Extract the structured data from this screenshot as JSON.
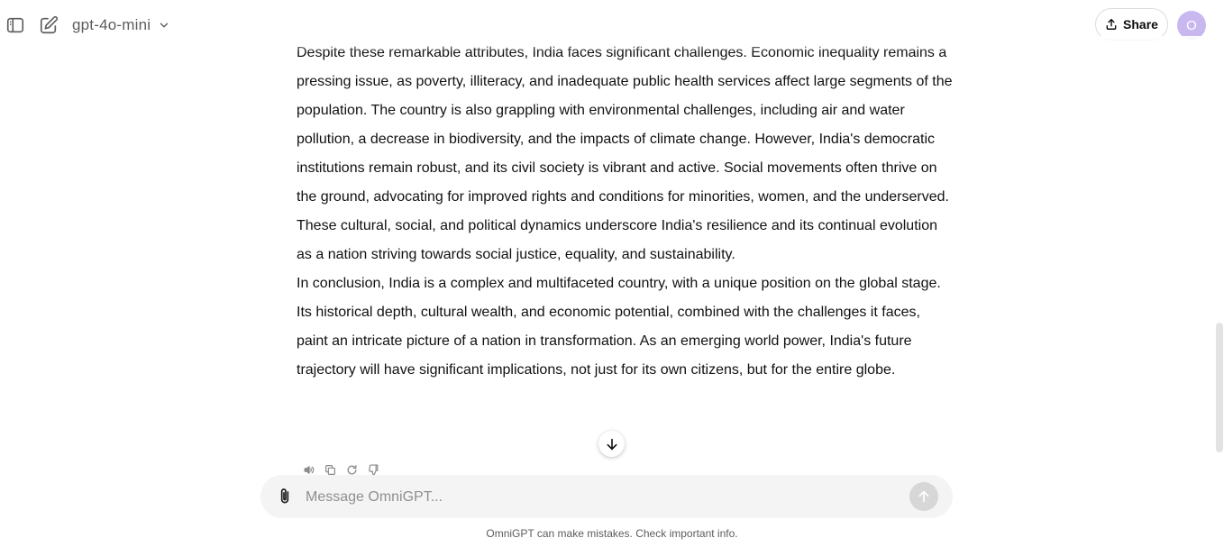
{
  "header": {
    "model_label": "gpt-4o-mini",
    "share_label": "Share",
    "avatar_initial": "O"
  },
  "message": {
    "paragraphs": [
      "Despite these remarkable attributes, India faces significant challenges. Economic inequality remains a pressing issue, as poverty, illiteracy, and inadequate public health services affect large segments of the population. The country is also grappling with environmental challenges, including air and water pollution, a decrease in biodiversity, and the impacts of climate change. However, India's democratic institutions remain robust, and its civil society is vibrant and active. Social movements often thrive on the ground, advocating for improved rights and conditions for minorities, women, and the underserved. These cultural, social, and political dynamics underscore India's resilience and its continual evolution as a nation striving towards social justice, equality, and sustainability.",
      "In conclusion, India is a complex and multifaceted country, with a unique position on the global stage. Its historical depth, cultural wealth, and economic potential, combined with the challenges it faces, paint an intricate picture of a nation in transformation. As an emerging world power, India's future trajectory will have significant implications, not just for its own citizens, but for the entire globe."
    ]
  },
  "composer": {
    "placeholder": "Message OmniGPT..."
  },
  "footer": {
    "note": "OmniGPT can make mistakes. Check important info."
  },
  "icons": {
    "sidebar": "sidebar-toggle-icon",
    "new_chat": "edit-icon",
    "chevron": "chevron-down-icon",
    "share": "upload-icon",
    "scroll_down": "arrow-down-icon",
    "read_aloud": "speaker-icon",
    "copy": "copy-icon",
    "regenerate": "refresh-icon",
    "dislike": "thumbs-down-icon",
    "attach": "paperclip-icon",
    "send": "arrow-up-icon"
  },
  "colors": {
    "avatar_bg": "#c9b8f0",
    "composer_bg": "#f4f4f4",
    "send_bg": "#d7d7d7"
  }
}
